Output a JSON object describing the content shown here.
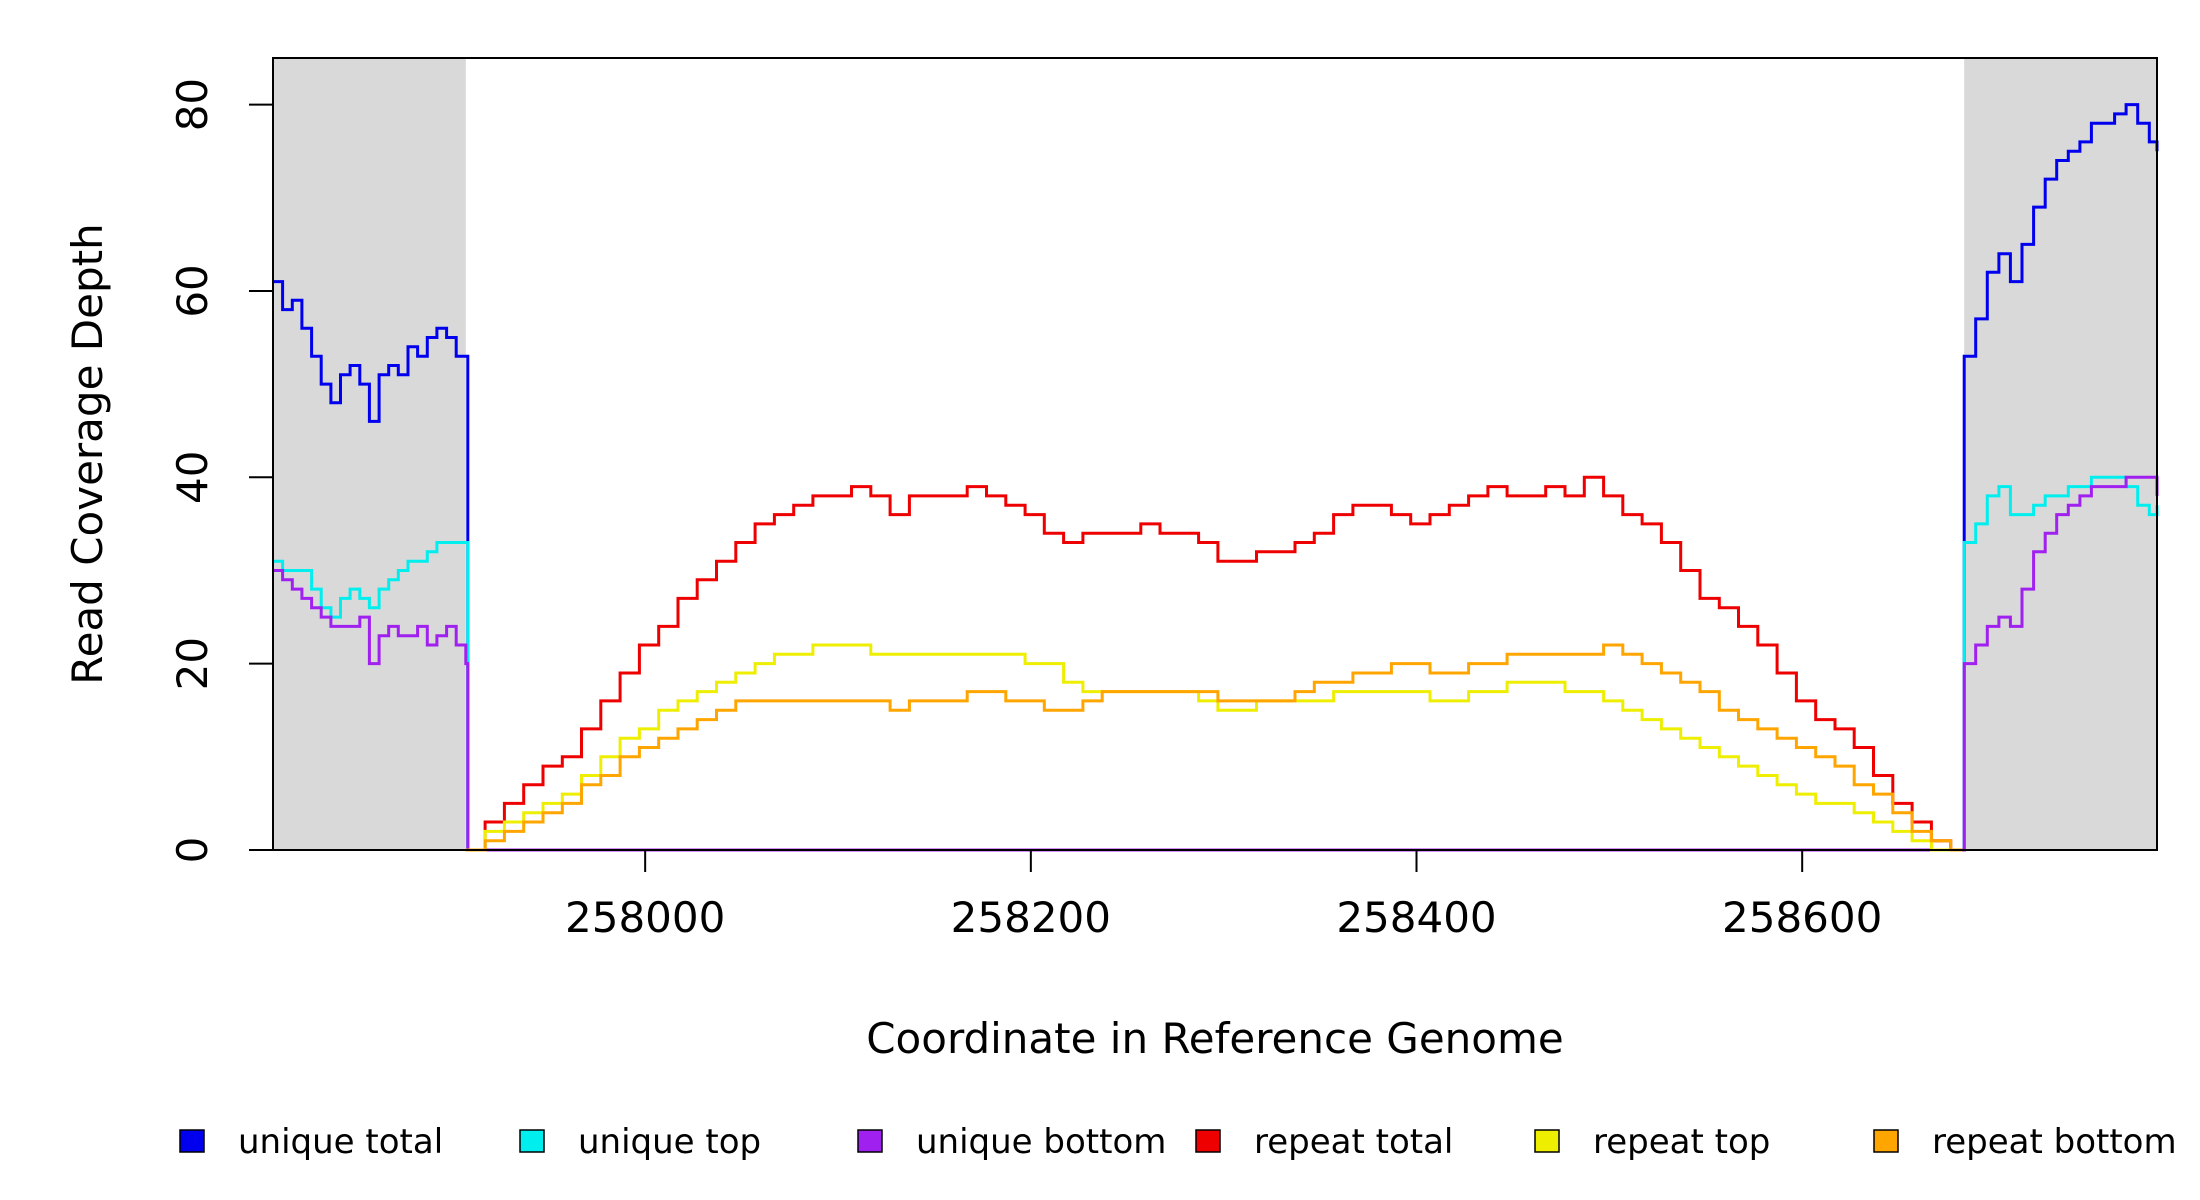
{
  "chart_data": {
    "type": "line",
    "xlabel": "Coordinate in Reference Genome",
    "ylabel": "Read Coverage Depth",
    "xlim": [
      257807,
      258784
    ],
    "ylim": [
      0,
      85
    ],
    "x_ticks": [
      258000,
      258200,
      258400,
      258600
    ],
    "y_ticks": [
      0,
      20,
      40,
      60,
      80
    ],
    "grid": false,
    "legend_placement": "bottom",
    "shaded_regions": [
      [
        257807,
        257907
      ],
      [
        258684,
        258784
      ]
    ],
    "shade_color": "#d9d9d9",
    "series": [
      {
        "name": "unique total",
        "color": "#0000ee",
        "x": [
          257807,
          257812,
          257817,
          257822,
          257827,
          257832,
          257837,
          257842,
          257847,
          257852,
          257857,
          257862,
          257867,
          257872,
          257877,
          257882,
          257887,
          257892,
          257897,
          257902,
          257907,
          257908,
          258683,
          258684,
          258690,
          258696,
          258702,
          258708,
          258714,
          258720,
          258726,
          258732,
          258738,
          258744,
          258750,
          258756,
          258762,
          258768,
          258774,
          258780,
          258784
        ],
        "y": [
          61,
          58,
          59,
          56,
          53,
          50,
          48,
          51,
          52,
          50,
          46,
          51,
          52,
          51,
          54,
          53,
          55,
          56,
          55,
          53,
          53,
          0,
          0,
          53,
          57,
          62,
          64,
          61,
          65,
          69,
          72,
          74,
          75,
          76,
          78,
          78,
          79,
          80,
          78,
          76,
          75
        ]
      },
      {
        "name": "unique top",
        "color": "#00eeee",
        "x": [
          257807,
          257812,
          257817,
          257822,
          257827,
          257832,
          257837,
          257842,
          257847,
          257852,
          257857,
          257862,
          257867,
          257872,
          257877,
          257882,
          257887,
          257892,
          257897,
          257902,
          257907,
          257908,
          258683,
          258684,
          258690,
          258696,
          258702,
          258708,
          258714,
          258720,
          258726,
          258732,
          258738,
          258744,
          258750,
          258756,
          258762,
          258768,
          258774,
          258780,
          258784
        ],
        "y": [
          31,
          30,
          30,
          30,
          28,
          26,
          25,
          27,
          28,
          27,
          26,
          28,
          29,
          30,
          31,
          31,
          32,
          33,
          33,
          33,
          33,
          0,
          0,
          33,
          35,
          38,
          39,
          36,
          36,
          37,
          38,
          38,
          39,
          39,
          40,
          40,
          40,
          39,
          37,
          36,
          37
        ]
      },
      {
        "name": "unique bottom",
        "color": "#a020f0",
        "x": [
          257807,
          257812,
          257817,
          257822,
          257827,
          257832,
          257837,
          257842,
          257847,
          257852,
          257857,
          257862,
          257867,
          257872,
          257877,
          257882,
          257887,
          257892,
          257897,
          257902,
          257907,
          257908,
          258683,
          258684,
          258690,
          258696,
          258702,
          258708,
          258714,
          258720,
          258726,
          258732,
          258738,
          258744,
          258750,
          258756,
          258762,
          258768,
          258774,
          258780,
          258784
        ],
        "y": [
          30,
          29,
          28,
          27,
          26,
          25,
          24,
          24,
          24,
          25,
          20,
          23,
          24,
          23,
          23,
          24,
          22,
          23,
          24,
          22,
          20,
          0,
          0,
          20,
          22,
          24,
          25,
          24,
          28,
          32,
          34,
          36,
          37,
          38,
          39,
          39,
          39,
          40,
          40,
          40,
          38
        ]
      },
      {
        "name": "repeat total",
        "color": "#ee0000",
        "x": [
          257907,
          257917,
          257927,
          257937,
          257947,
          257957,
          257967,
          257977,
          257987,
          257997,
          258007,
          258017,
          258027,
          258037,
          258047,
          258057,
          258067,
          258077,
          258087,
          258097,
          258107,
          258117,
          258127,
          258137,
          258147,
          258157,
          258167,
          258177,
          258187,
          258197,
          258207,
          258217,
          258227,
          258237,
          258247,
          258257,
          258267,
          258277,
          258287,
          258297,
          258307,
          258317,
          258327,
          258337,
          258347,
          258357,
          258367,
          258377,
          258387,
          258397,
          258407,
          258417,
          258427,
          258437,
          258447,
          258457,
          258467,
          258477,
          258487,
          258497,
          258507,
          258517,
          258527,
          258537,
          258547,
          258557,
          258567,
          258577,
          258587,
          258597,
          258607,
          258617,
          258627,
          258637,
          258647,
          258657,
          258667,
          258677,
          258683
        ],
        "y": [
          0,
          3,
          5,
          7,
          9,
          10,
          13,
          16,
          19,
          22,
          24,
          27,
          29,
          31,
          33,
          35,
          36,
          37,
          38,
          38,
          39,
          38,
          36,
          38,
          38,
          38,
          39,
          38,
          37,
          36,
          34,
          33,
          34,
          34,
          34,
          35,
          34,
          34,
          33,
          31,
          31,
          32,
          32,
          33,
          34,
          36,
          37,
          37,
          36,
          35,
          36,
          37,
          38,
          39,
          38,
          38,
          39,
          38,
          40,
          38,
          36,
          35,
          33,
          30,
          27,
          26,
          24,
          22,
          19,
          16,
          14,
          13,
          11,
          8,
          5,
          3,
          1,
          0,
          0
        ]
      },
      {
        "name": "repeat top",
        "color": "#eeee00",
        "x": [
          257907,
          257917,
          257927,
          257937,
          257947,
          257957,
          257967,
          257977,
          257987,
          257997,
          258007,
          258017,
          258027,
          258037,
          258047,
          258057,
          258067,
          258077,
          258087,
          258097,
          258107,
          258117,
          258127,
          258137,
          258147,
          258157,
          258167,
          258177,
          258187,
          258197,
          258207,
          258217,
          258227,
          258237,
          258247,
          258257,
          258267,
          258277,
          258287,
          258297,
          258307,
          258317,
          258327,
          258337,
          258347,
          258357,
          258367,
          258377,
          258387,
          258397,
          258407,
          258417,
          258427,
          258437,
          258447,
          258457,
          258467,
          258477,
          258487,
          258497,
          258507,
          258517,
          258527,
          258537,
          258547,
          258557,
          258567,
          258577,
          258587,
          258597,
          258607,
          258617,
          258627,
          258637,
          258647,
          258657,
          258667,
          258677,
          258683
        ],
        "y": [
          0,
          2,
          3,
          4,
          5,
          6,
          8,
          10,
          12,
          13,
          15,
          16,
          17,
          18,
          19,
          20,
          21,
          21,
          22,
          22,
          22,
          21,
          21,
          21,
          21,
          21,
          21,
          21,
          21,
          20,
          20,
          18,
          17,
          17,
          17,
          17,
          17,
          17,
          16,
          15,
          15,
          16,
          16,
          16,
          16,
          17,
          17,
          17,
          17,
          17,
          16,
          16,
          17,
          17,
          18,
          18,
          18,
          17,
          17,
          16,
          15,
          14,
          13,
          12,
          11,
          10,
          9,
          8,
          7,
          6,
          5,
          5,
          4,
          3,
          2,
          1,
          0,
          0,
          0
        ]
      },
      {
        "name": "repeat bottom",
        "color": "#ffa500",
        "x": [
          257907,
          257917,
          257927,
          257937,
          257947,
          257957,
          257967,
          257977,
          257987,
          257997,
          258007,
          258017,
          258027,
          258037,
          258047,
          258057,
          258067,
          258077,
          258087,
          258097,
          258107,
          258117,
          258127,
          258137,
          258147,
          258157,
          258167,
          258177,
          258187,
          258197,
          258207,
          258217,
          258227,
          258237,
          258247,
          258257,
          258267,
          258277,
          258287,
          258297,
          258307,
          258317,
          258327,
          258337,
          258347,
          258357,
          258367,
          258377,
          258387,
          258397,
          258407,
          258417,
          258427,
          258437,
          258447,
          258457,
          258467,
          258477,
          258487,
          258497,
          258507,
          258517,
          258527,
          258537,
          258547,
          258557,
          258567,
          258577,
          258587,
          258597,
          258607,
          258617,
          258627,
          258637,
          258647,
          258657,
          258667,
          258677,
          258683
        ],
        "y": [
          0,
          1,
          2,
          3,
          4,
          5,
          7,
          8,
          10,
          11,
          12,
          13,
          14,
          15,
          16,
          16,
          16,
          16,
          16,
          16,
          16,
          16,
          15,
          16,
          16,
          16,
          17,
          17,
          16,
          16,
          15,
          15,
          16,
          17,
          17,
          17,
          17,
          17,
          17,
          16,
          16,
          16,
          16,
          17,
          18,
          18,
          19,
          19,
          20,
          20,
          19,
          19,
          20,
          20,
          21,
          21,
          21,
          21,
          21,
          22,
          21,
          20,
          19,
          18,
          17,
          15,
          14,
          13,
          12,
          11,
          10,
          9,
          7,
          6,
          4,
          2,
          1,
          0,
          0
        ]
      }
    ]
  }
}
